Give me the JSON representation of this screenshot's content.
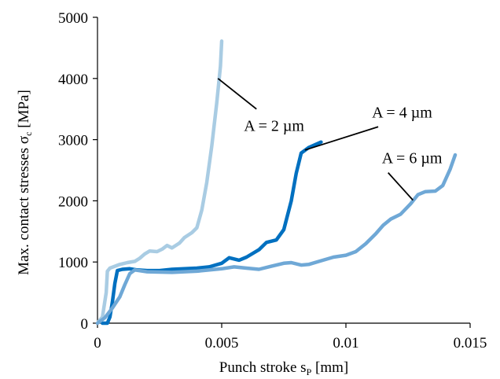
{
  "chart_data": {
    "type": "line",
    "xlabel": {
      "main": "Punch stroke s",
      "sub": "P",
      "unit": " [mm]"
    },
    "ylabel": {
      "main": "Max. contact stresses σ",
      "sub": "c",
      "unit": " [MPa]"
    },
    "xlim": [
      0,
      0.015
    ],
    "ylim": [
      0,
      5000
    ],
    "x_ticks": [
      0,
      0.005,
      0.01,
      0.015
    ],
    "x_tick_labels": [
      "0",
      "0.005",
      "0.01",
      "0.015"
    ],
    "y_ticks": [
      0,
      1000,
      2000,
      3000,
      4000,
      5000
    ],
    "y_tick_labels": [
      "0",
      "1000",
      "2000",
      "3000",
      "4000",
      "5000"
    ],
    "grid": false,
    "legend": "none",
    "series": [
      {
        "label": "A = 2 µm",
        "color": "#a9cce3",
        "points": [
          [
            5e-05,
            30
          ],
          [
            0.0002,
            100
          ],
          [
            0.00035,
            500
          ],
          [
            0.0004,
            850
          ],
          [
            0.0005,
            900
          ],
          [
            0.0007,
            930
          ],
          [
            0.0009,
            960
          ],
          [
            0.0012,
            990
          ],
          [
            0.0015,
            1010
          ],
          [
            0.0017,
            1060
          ],
          [
            0.0019,
            1130
          ],
          [
            0.0021,
            1180
          ],
          [
            0.0024,
            1170
          ],
          [
            0.0026,
            1210
          ],
          [
            0.0028,
            1270
          ],
          [
            0.003,
            1230
          ],
          [
            0.0033,
            1310
          ],
          [
            0.0035,
            1400
          ],
          [
            0.0038,
            1480
          ],
          [
            0.004,
            1560
          ],
          [
            0.0042,
            1850
          ],
          [
            0.0044,
            2300
          ],
          [
            0.0046,
            2900
          ],
          [
            0.0048,
            3600
          ],
          [
            0.00495,
            4200
          ],
          [
            0.005,
            4610
          ]
        ]
      },
      {
        "label": "A = 4 µm",
        "color": "#0070c0",
        "points": [
          [
            0.0002,
            0
          ],
          [
            0.0004,
            0
          ],
          [
            0.0005,
            100
          ],
          [
            0.0006,
            350
          ],
          [
            0.0007,
            650
          ],
          [
            0.0008,
            860
          ],
          [
            0.001,
            880
          ],
          [
            0.0013,
            890
          ],
          [
            0.0016,
            870
          ],
          [
            0.002,
            860
          ],
          [
            0.0025,
            860
          ],
          [
            0.003,
            880
          ],
          [
            0.0035,
            890
          ],
          [
            0.004,
            900
          ],
          [
            0.0045,
            920
          ],
          [
            0.005,
            980
          ],
          [
            0.0053,
            1070
          ],
          [
            0.0057,
            1030
          ],
          [
            0.006,
            1080
          ],
          [
            0.0065,
            1200
          ],
          [
            0.0068,
            1320
          ],
          [
            0.0072,
            1360
          ],
          [
            0.0075,
            1530
          ],
          [
            0.0078,
            2000
          ],
          [
            0.008,
            2450
          ],
          [
            0.0082,
            2780
          ],
          [
            0.0085,
            2870
          ],
          [
            0.009,
            2960
          ]
        ]
      },
      {
        "label": "A = 6 µm",
        "color": "#6fa8d6",
        "points": [
          [
            0,
            0
          ],
          [
            0.0003,
            90
          ],
          [
            0.0006,
            250
          ],
          [
            0.0009,
            430
          ],
          [
            0.0011,
            630
          ],
          [
            0.0013,
            810
          ],
          [
            0.0015,
            870
          ],
          [
            0.002,
            840
          ],
          [
            0.003,
            830
          ],
          [
            0.004,
            850
          ],
          [
            0.005,
            890
          ],
          [
            0.0055,
            920
          ],
          [
            0.006,
            900
          ],
          [
            0.0065,
            880
          ],
          [
            0.007,
            930
          ],
          [
            0.0075,
            980
          ],
          [
            0.0078,
            990
          ],
          [
            0.0082,
            950
          ],
          [
            0.0085,
            960
          ],
          [
            0.009,
            1020
          ],
          [
            0.0095,
            1080
          ],
          [
            0.01,
            1110
          ],
          [
            0.0104,
            1170
          ],
          [
            0.0108,
            1300
          ],
          [
            0.0112,
            1460
          ],
          [
            0.0115,
            1600
          ],
          [
            0.0118,
            1700
          ],
          [
            0.0122,
            1780
          ],
          [
            0.0126,
            1950
          ],
          [
            0.0129,
            2100
          ],
          [
            0.0132,
            2150
          ],
          [
            0.0136,
            2160
          ],
          [
            0.0139,
            2250
          ],
          [
            0.0142,
            2520
          ],
          [
            0.0144,
            2750
          ]
        ]
      }
    ],
    "annotations": [
      {
        "text": "A = 2 µm",
        "series": 0,
        "point": [
          0.00485,
          4000
        ],
        "label_at": [
          0.0064,
          3500
        ]
      },
      {
        "text": "A = 4 µm",
        "series": 1,
        "point": [
          0.00835,
          2830
        ],
        "label_at": [
          0.0113,
          3210
        ]
      },
      {
        "text": "A = 6 µm",
        "series": 2,
        "point": [
          0.0127,
          2010
        ],
        "label_at": [
          0.0117,
          2460
        ]
      }
    ]
  }
}
